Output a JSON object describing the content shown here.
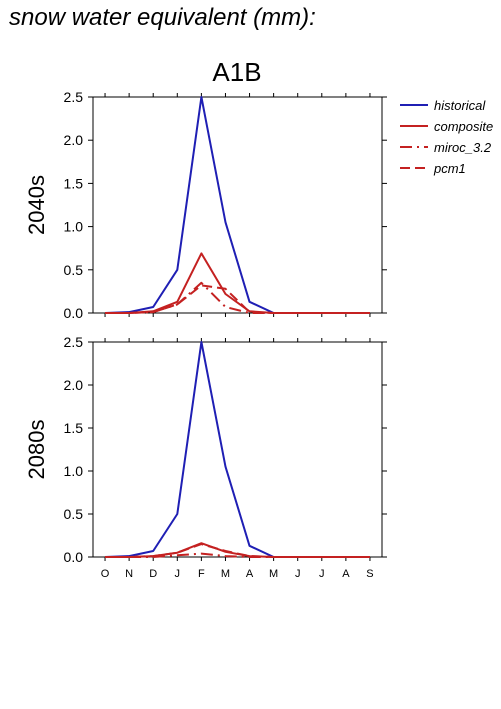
{
  "page": {
    "title": "snow water equivalent (mm):"
  },
  "scenario_label": "A1B",
  "legend": [
    {
      "label": "historical",
      "color": "#1f1fb4",
      "dash": "solid"
    },
    {
      "label": "composite",
      "color": "#c42121",
      "dash": "solid"
    },
    {
      "label": "miroc_3.2",
      "color": "#c42121",
      "dash": "dashdot"
    },
    {
      "label": "pcm1",
      "color": "#c42121",
      "dash": "dash"
    }
  ],
  "chart_data": [
    {
      "type": "line",
      "ylabel": "2040s",
      "categories": [
        "O",
        "N",
        "D",
        "J",
        "F",
        "M",
        "A",
        "M",
        "J",
        "J",
        "A",
        "S"
      ],
      "ylim": [
        0,
        2.5
      ],
      "yticks": [
        "0.0",
        "0.5",
        "1.0",
        "1.5",
        "2.0",
        "2.5"
      ],
      "show_xtick_labels": false,
      "series": [
        {
          "name": "historical",
          "color": "#1f1fb4",
          "dash": "solid",
          "values": [
            0,
            0.01,
            0.07,
            0.5,
            2.5,
            1.05,
            0.13,
            0,
            0,
            0,
            0,
            0
          ]
        },
        {
          "name": "composite",
          "color": "#c42121",
          "dash": "solid",
          "values": [
            0,
            0,
            0.02,
            0.13,
            0.69,
            0.22,
            0.02,
            0,
            0,
            0,
            0,
            0
          ]
        },
        {
          "name": "miroc_3.2",
          "color": "#c42121",
          "dash": "dashdot",
          "values": [
            0,
            0,
            0.01,
            0.1,
            0.35,
            0.07,
            0,
            0,
            0,
            0,
            0,
            0
          ]
        },
        {
          "name": "pcm1",
          "color": "#c42121",
          "dash": "dash",
          "values": [
            0,
            0,
            0.01,
            0.1,
            0.32,
            0.28,
            0.01,
            0,
            0,
            0,
            0,
            0
          ]
        }
      ]
    },
    {
      "type": "line",
      "ylabel": "2080s",
      "categories": [
        "O",
        "N",
        "D",
        "J",
        "F",
        "M",
        "A",
        "M",
        "J",
        "J",
        "A",
        "S"
      ],
      "ylim": [
        0,
        2.5
      ],
      "yticks": [
        "0.0",
        "0.5",
        "1.0",
        "1.5",
        "2.0",
        "2.5"
      ],
      "show_xtick_labels": true,
      "series": [
        {
          "name": "historical",
          "color": "#1f1fb4",
          "dash": "solid",
          "values": [
            0,
            0.01,
            0.07,
            0.5,
            2.5,
            1.05,
            0.13,
            0,
            0,
            0,
            0,
            0
          ]
        },
        {
          "name": "composite",
          "color": "#c42121",
          "dash": "solid",
          "values": [
            0,
            0,
            0.01,
            0.05,
            0.16,
            0.06,
            0.01,
            0,
            0,
            0,
            0,
            0
          ]
        },
        {
          "name": "miroc_3.2",
          "color": "#c42121",
          "dash": "dashdot",
          "values": [
            0,
            0,
            0,
            0.02,
            0.04,
            0.01,
            0,
            0,
            0,
            0,
            0,
            0
          ]
        },
        {
          "name": "pcm1",
          "color": "#c42121",
          "dash": "dash",
          "values": [
            0,
            0,
            0.01,
            0.05,
            0.15,
            0.07,
            0.01,
            0,
            0,
            0,
            0,
            0
          ]
        }
      ]
    }
  ]
}
